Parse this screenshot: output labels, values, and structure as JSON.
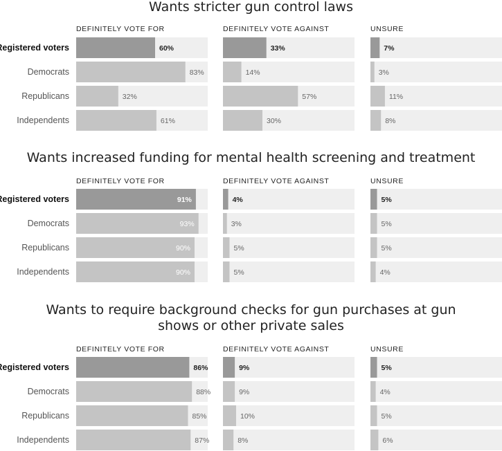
{
  "chart_data": [
    {
      "type": "bar",
      "title_lines": [
        "Wants stricter gun control laws"
      ],
      "columns": [
        "DEFINITELY VOTE FOR",
        "DEFINITELY VOTE AGAINST",
        "UNSURE"
      ],
      "categories": [
        "Registered voters",
        "Democrats",
        "Republicans",
        "Independents"
      ],
      "series": [
        {
          "name": "DEFINITELY VOTE FOR",
          "values": [
            60,
            83,
            32,
            61
          ],
          "labels": [
            "60%",
            "83%",
            "32%",
            "61%"
          ]
        },
        {
          "name": "DEFINITELY VOTE AGAINST",
          "values": [
            33,
            14,
            57,
            30
          ],
          "labels": [
            "33%",
            "14%",
            "57%",
            "30%"
          ]
        },
        {
          "name": "UNSURE",
          "values": [
            7,
            3,
            11,
            8
          ],
          "labels": [
            "7%",
            "3%",
            "11%",
            "8%"
          ]
        }
      ],
      "xlim": [
        0,
        100
      ]
    },
    {
      "type": "bar",
      "title_lines": [
        "Wants increased funding for mental health screening and treatment"
      ],
      "columns": [
        "DEFINITELY VOTE FOR",
        "DEFINITELY VOTE AGAINST",
        "UNSURE"
      ],
      "categories": [
        "Registered voters",
        "Democrats",
        "Republicans",
        "Independents"
      ],
      "series": [
        {
          "name": "DEFINITELY VOTE FOR",
          "values": [
            91,
            93,
            90,
            90
          ],
          "labels": [
            "91%",
            "93%",
            "90%",
            "90%"
          ]
        },
        {
          "name": "DEFINITELY VOTE AGAINST",
          "values": [
            4,
            3,
            5,
            5
          ],
          "labels": [
            "4%",
            "3%",
            "5%",
            "5%"
          ]
        },
        {
          "name": "UNSURE",
          "values": [
            5,
            5,
            5,
            4
          ],
          "labels": [
            "5%",
            "5%",
            "5%",
            "4%"
          ]
        }
      ],
      "xlim": [
        0,
        100
      ]
    },
    {
      "type": "bar",
      "title_lines": [
        "Wants to require background checks for gun purchases at gun",
        "shows or other private sales"
      ],
      "columns": [
        "DEFINITELY VOTE FOR",
        "DEFINITELY VOTE AGAINST",
        "UNSURE"
      ],
      "categories": [
        "Registered voters",
        "Democrats",
        "Republicans",
        "Independents"
      ],
      "series": [
        {
          "name": "DEFINITELY VOTE FOR",
          "values": [
            86,
            88,
            85,
            87
          ],
          "labels": [
            "86%",
            "88%",
            "85%",
            "87%"
          ]
        },
        {
          "name": "DEFINITELY VOTE AGAINST",
          "values": [
            9,
            9,
            10,
            8
          ],
          "labels": [
            "9%",
            "9%",
            "10%",
            "8%"
          ]
        },
        {
          "name": "UNSURE",
          "values": [
            5,
            4,
            5,
            6
          ],
          "labels": [
            "5%",
            "4%",
            "5%",
            "6%"
          ]
        }
      ],
      "xlim": [
        0,
        100
      ]
    }
  ],
  "colors": {
    "highlight_bar": "#999999",
    "bar": "#c4c4c4",
    "track": "#efefef",
    "label_inside": "#ffffff"
  }
}
